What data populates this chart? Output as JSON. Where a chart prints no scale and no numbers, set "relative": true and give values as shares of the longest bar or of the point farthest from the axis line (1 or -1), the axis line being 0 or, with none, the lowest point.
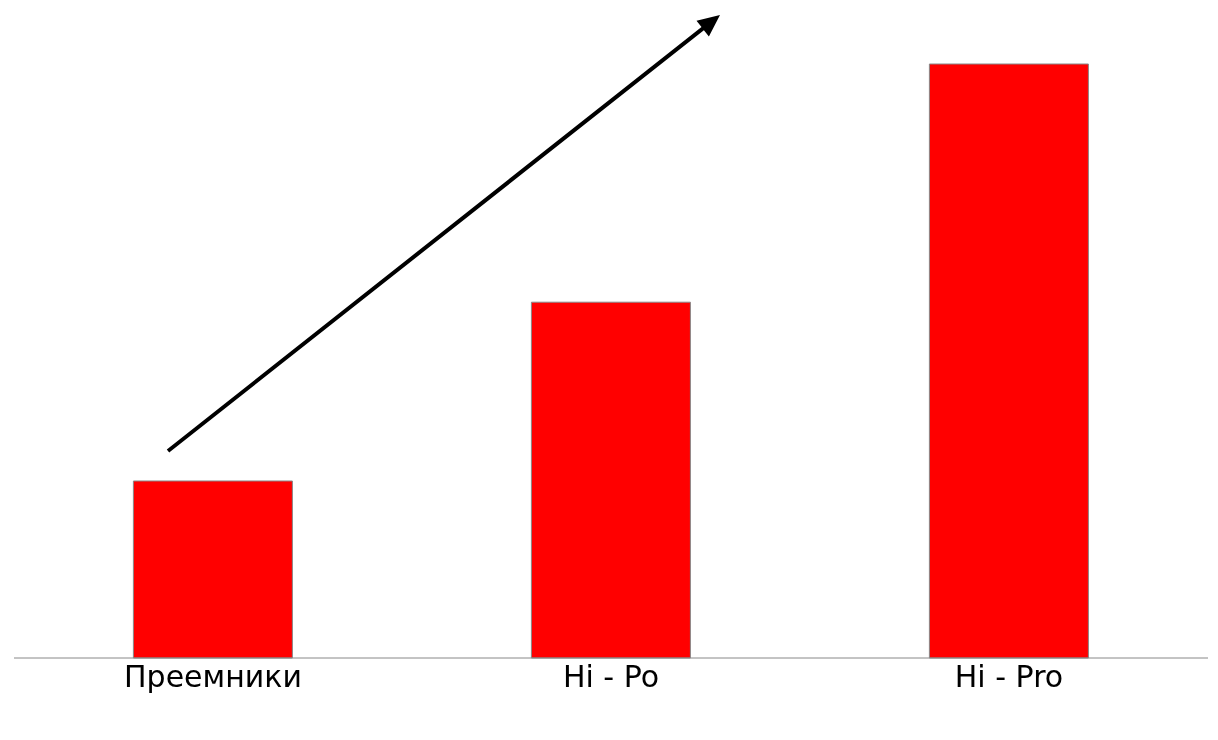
{
  "chart_data": {
    "type": "bar",
    "relative": true,
    "categories": [
      "Преемники",
      "Hi - Po",
      "Hi - Pro"
    ],
    "values": [
      0.298,
      0.599,
      1
    ],
    "color": "#ff0000"
  }
}
